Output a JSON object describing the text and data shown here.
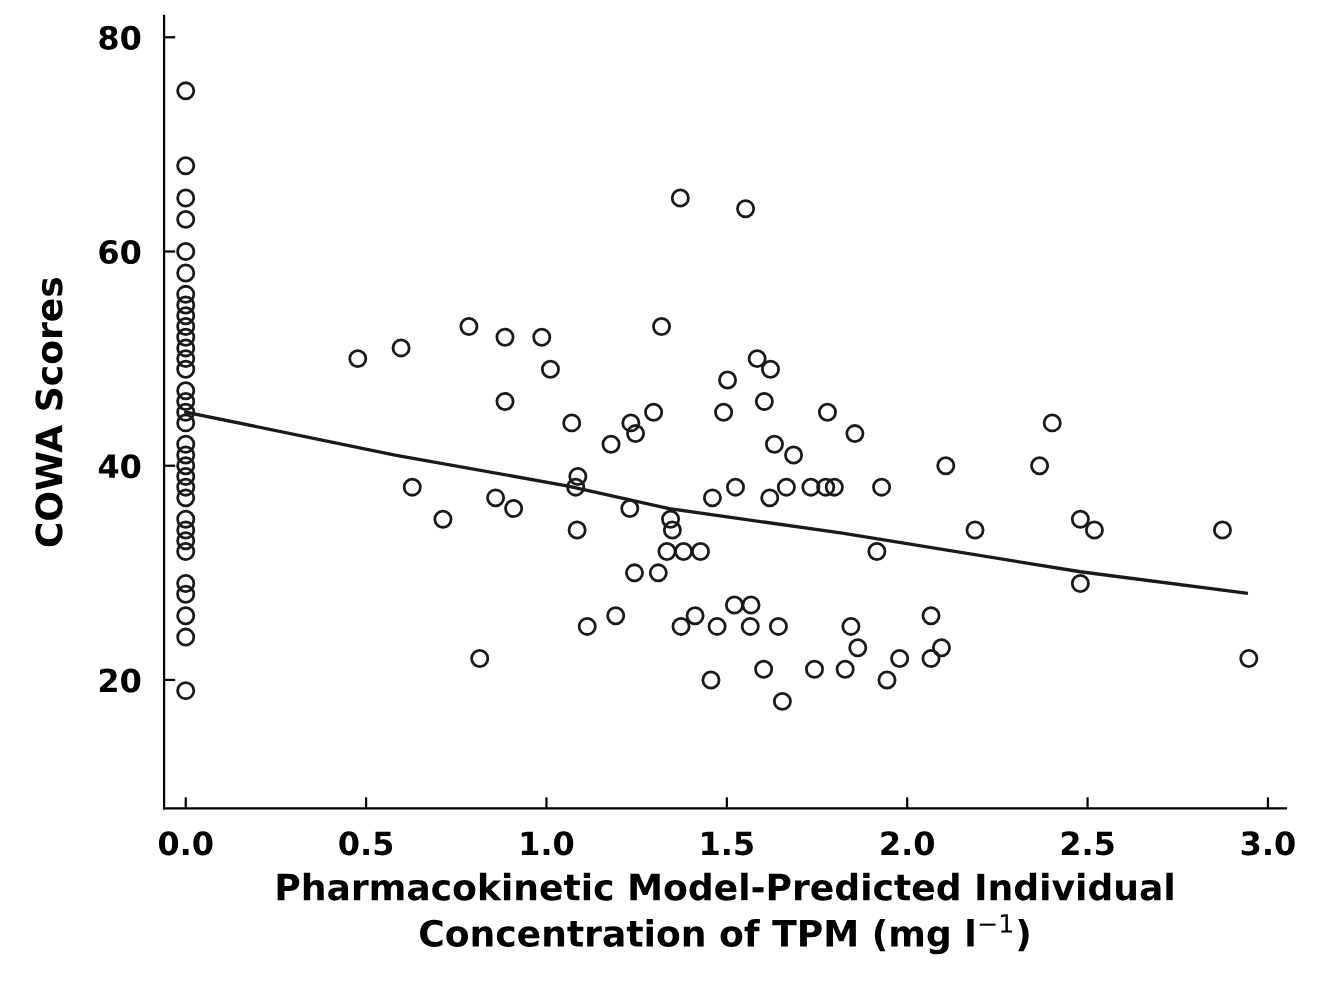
{
  "chart_data": {
    "type": "scatter",
    "xlabel": "Pharmacokinetic Model-Predicted Individual\nConcentration of TPM (mg l$^{−1}$)",
    "ylabel": "COWA Scores",
    "xlim": [
      -0.06,
      3.05
    ],
    "ylim": [
      8,
      82
    ],
    "xticks": [
      {
        "value": 0,
        "label": "0.0"
      },
      0.5,
      {
        "value": 1,
        "label": "1.0"
      },
      1.5,
      {
        "value": 2,
        "label": "2.0"
      },
      2.5,
      {
        "value": 3,
        "label": "3.0"
      }
    ],
    "yticks": [
      20,
      40,
      60,
      80
    ],
    "grid": false,
    "legend": false,
    "series": [
      {
        "color": "#1a1a1a",
        "marker": "circle",
        "x": [
          0,
          0,
          0,
          0,
          0,
          0,
          0,
          0,
          0,
          0,
          0,
          0,
          0,
          0,
          0,
          0,
          0,
          0,
          0,
          0,
          0,
          0,
          0,
          0,
          0,
          0,
          0,
          0,
          0,
          0,
          0,
          0,
          0,
          0.477,
          0.597,
          0.785,
          0.628,
          0.713,
          0.815,
          0.885,
          0.987,
          1.011,
          1.319,
          1.584,
          1.621,
          1.502,
          0.885,
          1.07,
          1.234,
          1.247,
          1.297,
          1.179,
          1.491,
          1.604,
          1.779,
          1.855,
          1.632,
          1.685,
          0.859,
          0.909,
          1.087,
          1.081,
          1.085,
          1.231,
          1.344,
          1.349,
          1.334,
          1.38,
          1.427,
          1.244,
          1.31,
          1.46,
          1.524,
          1.619,
          1.665,
          1.733,
          1.774,
          1.798,
          1.521,
          1.567,
          1.192,
          1.412,
          1.113,
          1.373,
          1.473,
          1.565,
          1.643,
          1.844,
          1.863,
          1.456,
          1.602,
          1.743,
          1.828,
          1.654,
          1.371,
          1.552,
          1.929,
          2.107,
          2.367,
          2.402,
          2.188,
          2.48,
          2.519,
          2.874,
          1.916,
          2.48,
          1.944,
          1.979,
          2.066,
          2.066,
          2.095,
          2.947
        ],
        "values": [
          75,
          68,
          65,
          63,
          60,
          58,
          56,
          55,
          54,
          53,
          52,
          51,
          50,
          49,
          47,
          46,
          45,
          44,
          42,
          41,
          40,
          39,
          38,
          37,
          35,
          34,
          33,
          32,
          29,
          28,
          26,
          24,
          19,
          50,
          51,
          53,
          38,
          35,
          22,
          52,
          52,
          49,
          53,
          50,
          49,
          48,
          46,
          44,
          44,
          43,
          45,
          42,
          45,
          46,
          45,
          43,
          42,
          41,
          37,
          36,
          39,
          38,
          34,
          36,
          35,
          34,
          32,
          32,
          32,
          30,
          30,
          37,
          38,
          37,
          38,
          38,
          38,
          38,
          27,
          27,
          26,
          26,
          25,
          25,
          25,
          25,
          25,
          25,
          23,
          20,
          21,
          21,
          21,
          18,
          65,
          64,
          38,
          40,
          40,
          44,
          34,
          35,
          34,
          34,
          32,
          29,
          20,
          22,
          26,
          22,
          23,
          22
        ]
      },
      {
        "type": "line",
        "color": "#1a1a1a",
        "marker": "none",
        "line_style": "solid",
        "x": [
          0,
          0.58,
          1.06,
          1.34,
          1.82,
          2.48,
          2.94
        ],
        "values": [
          45,
          41,
          38.1,
          36,
          33.7,
          30.1,
          28.1
        ]
      }
    ]
  }
}
